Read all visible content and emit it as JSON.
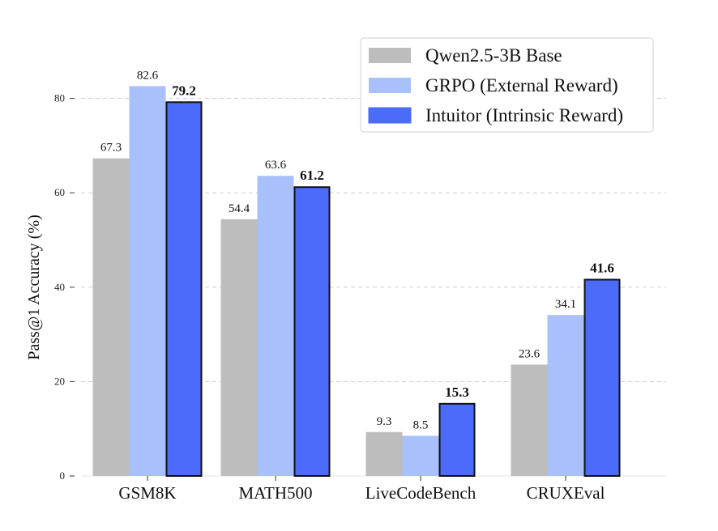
{
  "chart_data": {
    "type": "bar",
    "title": "",
    "xlabel": "",
    "ylabel": "Pass@1 Accuracy (%)",
    "ylim": [
      0,
      90
    ],
    "yticks": [
      0,
      20,
      40,
      60,
      80
    ],
    "grid": true,
    "legend_position": "top-right",
    "categories": [
      "GSM8K",
      "MATH500",
      "LiveCodeBench",
      "CRUXEval"
    ],
    "series": [
      {
        "name": "Qwen2.5-3B Base",
        "color": "#bdbdbd",
        "outlined": false,
        "bold_labels": false,
        "values": [
          67.3,
          54.4,
          9.3,
          23.6
        ],
        "labels": [
          "67.3",
          "54.4",
          "9.3",
          "23.6"
        ]
      },
      {
        "name": "GRPO (External Reward)",
        "color": "#a8c0fb",
        "outlined": false,
        "bold_labels": false,
        "values": [
          82.6,
          63.6,
          8.5,
          34.1
        ],
        "labels": [
          "82.6",
          "63.6",
          "8.5",
          "34.1"
        ]
      },
      {
        "name": "Intuitor (Intrinsic Reward)",
        "color": "#4b6bfb",
        "outlined": true,
        "bold_labels": true,
        "values": [
          79.2,
          61.2,
          15.3,
          41.6
        ],
        "labels": [
          "79.2",
          "61.2",
          "15.3",
          "41.6"
        ]
      }
    ]
  }
}
